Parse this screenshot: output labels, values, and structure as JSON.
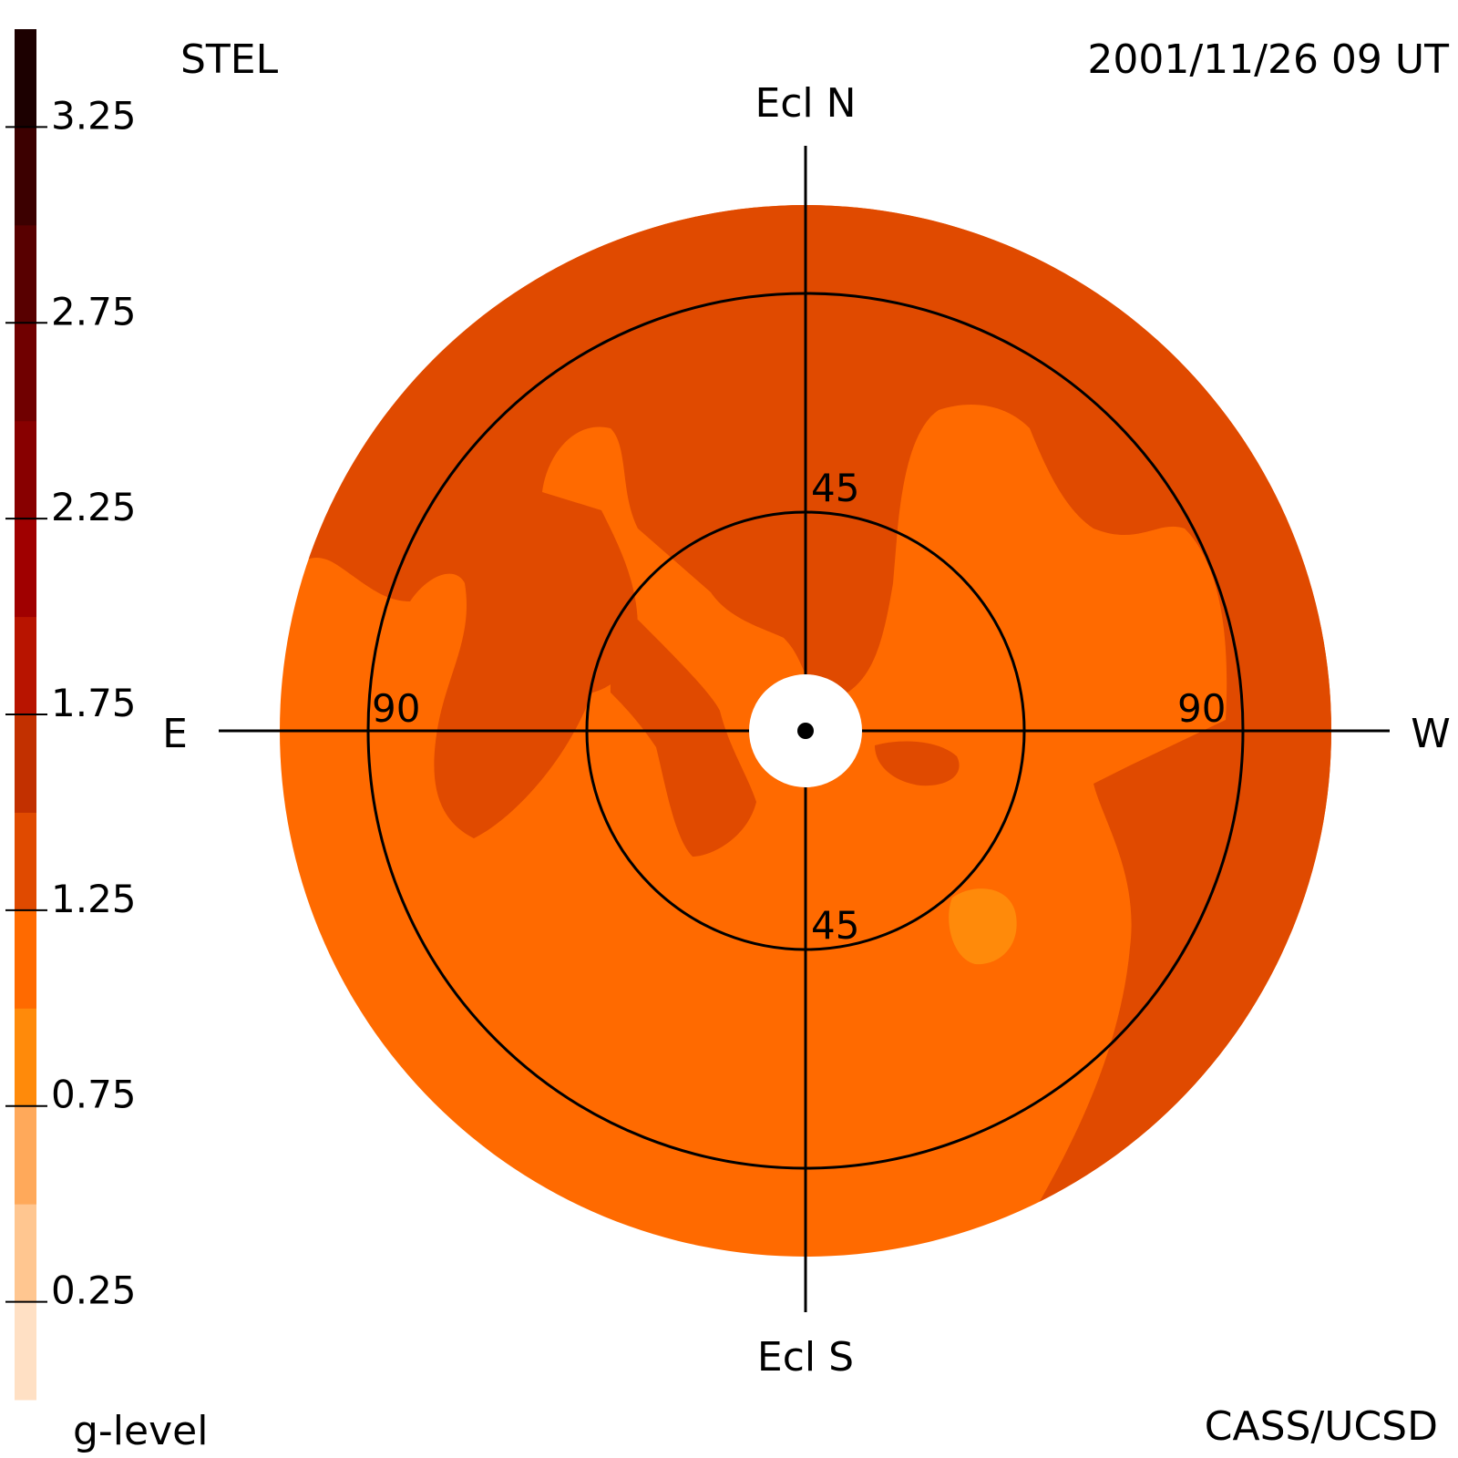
{
  "chart_data": {
    "type": "heatmap",
    "title_left": "STEL",
    "title_right": "2001/11/26 09 UT",
    "credit": "CASS/UCSD",
    "colorbar": {
      "label": "g-level",
      "ticks": [
        "0.25",
        "0.75",
        "1.25",
        "1.75",
        "2.25",
        "2.75",
        "3.25"
      ],
      "tick_values": [
        0.25,
        0.75,
        1.25,
        1.75,
        2.25,
        2.75,
        3.25
      ],
      "range": [
        0,
        3.5
      ],
      "colors": [
        "#ffe0c4",
        "#ffc690",
        "#ffa95a",
        "#ff8a0a",
        "#ff6a00",
        "#e04a00",
        "#c23000",
        "#b81400",
        "#a00000",
        "#880000",
        "#700000",
        "#580000",
        "#3c0000",
        "#1c0000"
      ]
    },
    "directions": {
      "north": "Ecl N",
      "south": "Ecl S",
      "east": "E",
      "west": "W"
    },
    "rings": [
      {
        "elongation": 45,
        "label": "45"
      },
      {
        "elongation": 90,
        "label": "90"
      }
    ],
    "field_colors": {
      "base": "#ff6a00",
      "enhanced": "#e04a00",
      "peak": "#ff8a0a"
    },
    "grid": true
  }
}
